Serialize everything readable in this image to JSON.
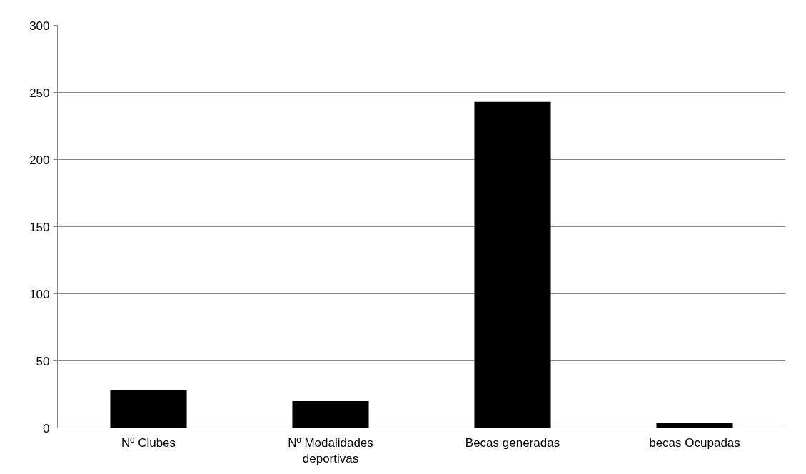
{
  "chart_data": {
    "type": "bar",
    "categories": [
      "Nº Clubes",
      "Nº Modalidades deportivas",
      "Becas generadas",
      "becas Ocupadas"
    ],
    "values": [
      28,
      20,
      243,
      4
    ],
    "color": "#000000",
    "ylim": [
      0,
      300
    ],
    "yticks": [
      0,
      50,
      100,
      150,
      200,
      250,
      300
    ],
    "grid": "y"
  }
}
